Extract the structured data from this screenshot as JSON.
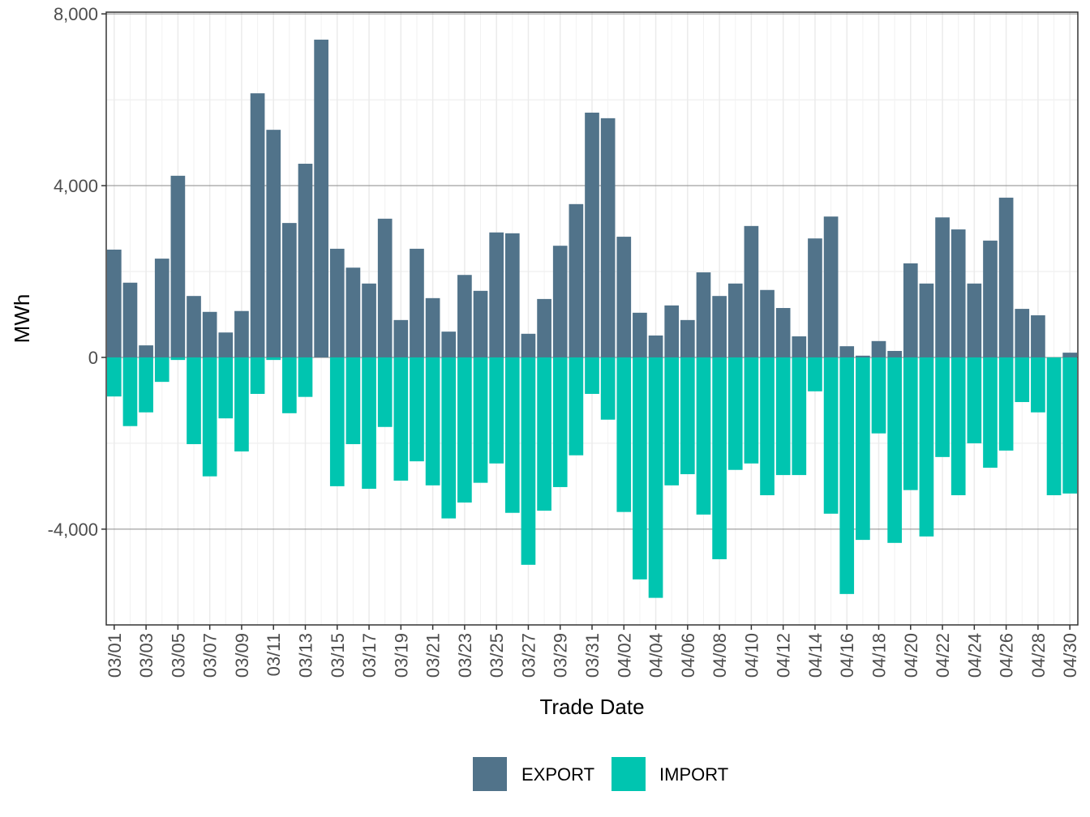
{
  "chart_data": {
    "type": "bar",
    "x_label": "Trade Date",
    "y_label": "MWh",
    "categories": [
      "03/01",
      null,
      "03/03",
      null,
      "03/05",
      null,
      "03/07",
      null,
      "03/09",
      null,
      "03/11",
      null,
      "03/13",
      null,
      "03/15",
      null,
      "03/17",
      null,
      "03/19",
      null,
      "03/21",
      null,
      "03/23",
      null,
      "03/25",
      null,
      "03/27",
      null,
      "03/29",
      null,
      "03/31",
      null,
      "04/02",
      null,
      "04/04",
      null,
      "04/06",
      null,
      "04/08",
      null,
      "04/10",
      null,
      "04/12",
      null,
      "04/14",
      null,
      "04/16",
      null,
      "04/18",
      null,
      "04/20",
      null,
      "04/22",
      null,
      "04/24",
      null,
      "04/26",
      null,
      "04/28",
      null,
      "04/30"
    ],
    "series": [
      {
        "name": "EXPORT",
        "color": "#51738a",
        "values": [
          2510,
          1740,
          280,
          2300,
          4230,
          1430,
          1060,
          580,
          1080,
          6150,
          5300,
          3130,
          4510,
          7400,
          2530,
          2090,
          1720,
          3230,
          870,
          2530,
          1380,
          600,
          1920,
          1550,
          2910,
          2890,
          550,
          1360,
          2600,
          3570,
          5700,
          5570,
          2810,
          1040,
          510,
          1210,
          870,
          1980,
          1430,
          1720,
          3060,
          1570,
          1150,
          490,
          2770,
          3280,
          260,
          40,
          380,
          150,
          2190,
          1720,
          3260,
          2980,
          1720,
          2720,
          3720,
          1130,
          980,
          0,
          110
        ]
      },
      {
        "name": "IMPORT",
        "color": "#00c5b0",
        "values": [
          -910,
          -1600,
          -1280,
          -570,
          -60,
          -2020,
          -2770,
          -1420,
          -2190,
          -850,
          -60,
          -1300,
          -920,
          0,
          -3000,
          -2020,
          -3060,
          -1620,
          -2870,
          -2420,
          -2980,
          -3750,
          -3380,
          -2920,
          -2470,
          -3620,
          -4830,
          -3570,
          -3020,
          -2280,
          -850,
          -1450,
          -3600,
          -5170,
          -5600,
          -2980,
          -2720,
          -3660,
          -4700,
          -2620,
          -2470,
          -3210,
          -2740,
          -2740,
          -790,
          -3640,
          -5510,
          -4250,
          -1770,
          -4320,
          -3090,
          -4170,
          -2320,
          -3210,
          -2000,
          -2570,
          -2170,
          -1040,
          -1280,
          -3210,
          -3170
        ]
      }
    ],
    "ylim": [
      -6230,
      8040
    ],
    "yticks": [
      {
        "value": -4000,
        "label": "-4,000"
      },
      0,
      {
        "value": 4000,
        "label": "4,000"
      },
      {
        "value": 8000,
        "label": "8,000"
      }
    ],
    "grid": true,
    "legend": "bottom"
  }
}
